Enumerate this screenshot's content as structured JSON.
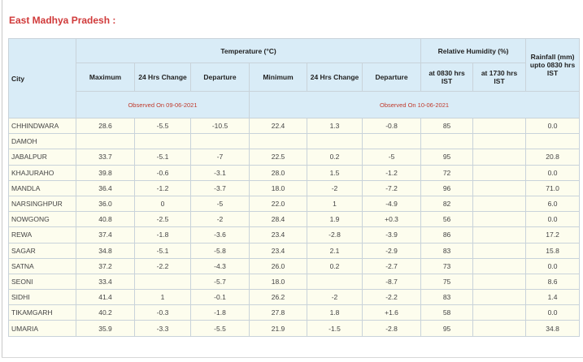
{
  "title": "East Madhya Pradesh :",
  "headers": {
    "city": "City",
    "temperature": "Temperature (°C)",
    "humidity": "Relative Humidity (%)",
    "rainfall": "Rainfall (mm) upto 0830 hrs IST",
    "maximum": "Maximum",
    "change1": "24 Hrs Change",
    "departure1": "Departure",
    "minimum": "Minimum",
    "change2": "24 Hrs Change",
    "departure2": "Departure",
    "rh0830": "at 0830 hrs IST",
    "rh1730": "at 1730 hrs IST",
    "observed_max": "Observed On 09-06-2021",
    "observed_min": "Observed On 10-06-2021"
  },
  "rows": [
    [
      "CHHINDWARA",
      "28.6",
      "-5.5",
      "-10.5",
      "22.4",
      "1.3",
      "-0.8",
      "85",
      "",
      "0.0"
    ],
    [
      "DAMOH",
      "",
      "",
      "",
      "",
      "",
      "",
      "",
      "",
      ""
    ],
    [
      "JABALPUR",
      "33.7",
      "-5.1",
      "-7",
      "22.5",
      "0.2",
      "-5",
      "95",
      "",
      "20.8"
    ],
    [
      "KHAJURAHO",
      "39.8",
      "-0.6",
      "-3.1",
      "28.0",
      "1.5",
      "-1.2",
      "72",
      "",
      "0.0"
    ],
    [
      "MANDLA",
      "36.4",
      "-1.2",
      "-3.7",
      "18.0",
      "-2",
      "-7.2",
      "96",
      "",
      "71.0"
    ],
    [
      "NARSINGHPUR",
      "36.0",
      "0",
      "-5",
      "22.0",
      "1",
      "-4.9",
      "82",
      "",
      "6.0"
    ],
    [
      "NOWGONG",
      "40.8",
      "-2.5",
      "-2",
      "28.4",
      "1.9",
      "+0.3",
      "56",
      "",
      "0.0"
    ],
    [
      "REWA",
      "37.4",
      "-1.8",
      "-3.6",
      "23.4",
      "-2.8",
      "-3.9",
      "86",
      "",
      "17.2"
    ],
    [
      "SAGAR",
      "34.8",
      "-5.1",
      "-5.8",
      "23.4",
      "2.1",
      "-2.9",
      "83",
      "",
      "15.8"
    ],
    [
      "SATNA",
      "37.2",
      "-2.2",
      "-4.3",
      "26.0",
      "0.2",
      "-2.7",
      "73",
      "",
      "0.0"
    ],
    [
      "SEONI",
      "33.4",
      "",
      "-5.7",
      "18.0",
      "",
      "-8.7",
      "75",
      "",
      "8.6"
    ],
    [
      "SIDHI",
      "41.4",
      "1",
      "-0.1",
      "26.2",
      "-2",
      "-2.2",
      "83",
      "",
      "1.4"
    ],
    [
      "TIKAMGARH",
      "40.2",
      "-0.3",
      "-1.8",
      "27.8",
      "1.8",
      "+1.6",
      "58",
      "",
      "0.0"
    ],
    [
      "UMARIA",
      "35.9",
      "-3.3",
      "-5.5",
      "21.9",
      "-1.5",
      "-2.8",
      "95",
      "",
      "34.8"
    ]
  ]
}
